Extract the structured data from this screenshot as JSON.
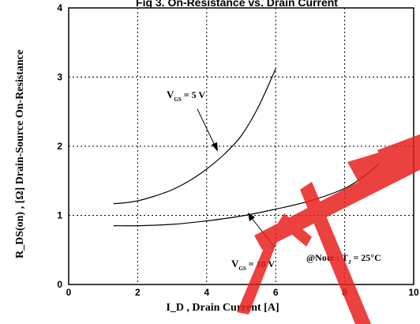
{
  "chart_data": {
    "type": "line",
    "title": "Fig 3. On-Resistance vs. Drain Current",
    "xlabel": "I_D , Drain Current  [A]",
    "ylabel": "R_DS(on) , [Ω] Drain-Source On-Resistance",
    "xlim": [
      0,
      10
    ],
    "ylim": [
      0,
      4
    ],
    "xticks": [
      "0",
      "2",
      "4",
      "6",
      "8",
      "10"
    ],
    "yticks": [
      "0",
      "1",
      "2",
      "3",
      "4"
    ],
    "grid": true,
    "series": [
      {
        "name": "VGS = 5 V",
        "x": [
          1.3,
          1.6,
          2.0,
          2.5,
          3.0,
          3.5,
          4.0,
          4.5,
          5.0,
          5.5,
          6.0
        ],
        "y": [
          1.17,
          1.18,
          1.21,
          1.28,
          1.37,
          1.5,
          1.67,
          1.88,
          2.15,
          2.57,
          3.12
        ]
      },
      {
        "name": "VGS = 10 V",
        "x": [
          1.3,
          2.0,
          3.0,
          4.0,
          5.0,
          6.0,
          7.0,
          8.0,
          8.6,
          9.0
        ],
        "y": [
          0.85,
          0.85,
          0.87,
          0.92,
          0.99,
          1.09,
          1.21,
          1.39,
          1.58,
          1.75
        ]
      }
    ],
    "annotations": {
      "vgs5": {
        "main": "V",
        "sub": "GS",
        "rest": " = 5 V"
      },
      "vgs10": {
        "main": "V",
        "sub": "GS",
        "rest": " = 10 V"
      },
      "note": {
        "prefix": "@Note : T",
        "sub": "J",
        "rest": " = 25°C"
      }
    }
  }
}
